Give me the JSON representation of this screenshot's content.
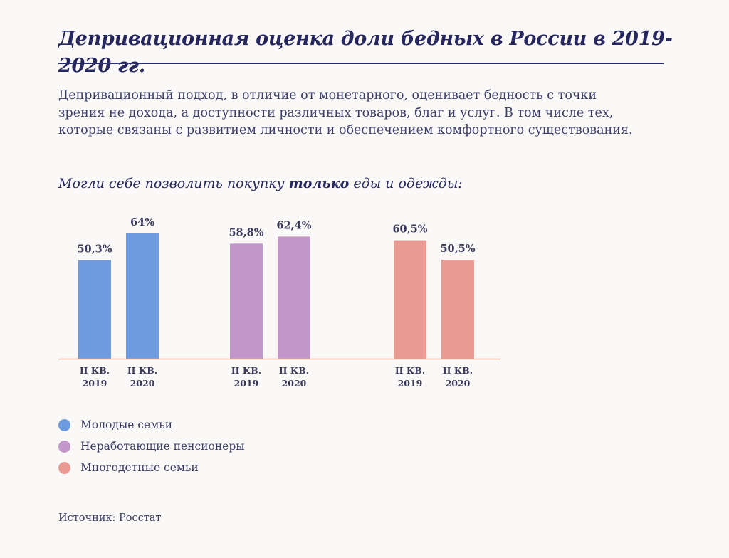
{
  "title": "Депривационная оценка доли бедных в России в 2019-2020 гг.",
  "intro": "Депривационный подход, в отличие от монетарного, оценивает бедность с точки зрения не дохода, а доступности различных товаров, благ и услуг. В том числе тех, которые связаны с развитием личности и обеспечением комфортного существования.",
  "intro_lines": [
    "Депривационный подход, в отличие от монетарного, оценивает бедность с точки",
    "зрения не дохода, а доступности различных товаров, благ и услуг. В том числе тех,",
    "которые связаны с развитием личности и обеспечением комфортного существования."
  ],
  "subtitle": {
    "before": "Могли себе позволить покупку ",
    "bold": "только",
    "after": " еды и одежды:"
  },
  "source": "Источник: Росстат",
  "colors": {
    "young_families": "#6e9ae0",
    "pensioners": "#c197c9",
    "large_families": "#e89a93",
    "axis": "#e0b09a"
  },
  "chart_data": {
    "type": "bar",
    "categories": [
      "II КВ. 2019",
      "II КВ. 2020"
    ],
    "ylim": [
      0,
      70
    ],
    "series": [
      {
        "name": "Молодые семьи",
        "values": [
          50.3,
          64
        ],
        "labels": [
          "50,3%",
          "64%"
        ],
        "color": "#6e9ae0"
      },
      {
        "name": "Неработающие пенсионеры",
        "values": [
          58.8,
          62.4
        ],
        "labels": [
          "58,8%",
          "62,4%"
        ],
        "color": "#c197c9"
      },
      {
        "name": "Многодетные семьи",
        "values": [
          60.5,
          50.5
        ],
        "labels": [
          "60,5%",
          "50,5%"
        ],
        "color": "#e89a93"
      }
    ],
    "tick_lines": [
      "II КВ.",
      "2019",
      "II КВ.",
      "2020"
    ],
    "legend_position": "bottom-left",
    "grid": false
  }
}
